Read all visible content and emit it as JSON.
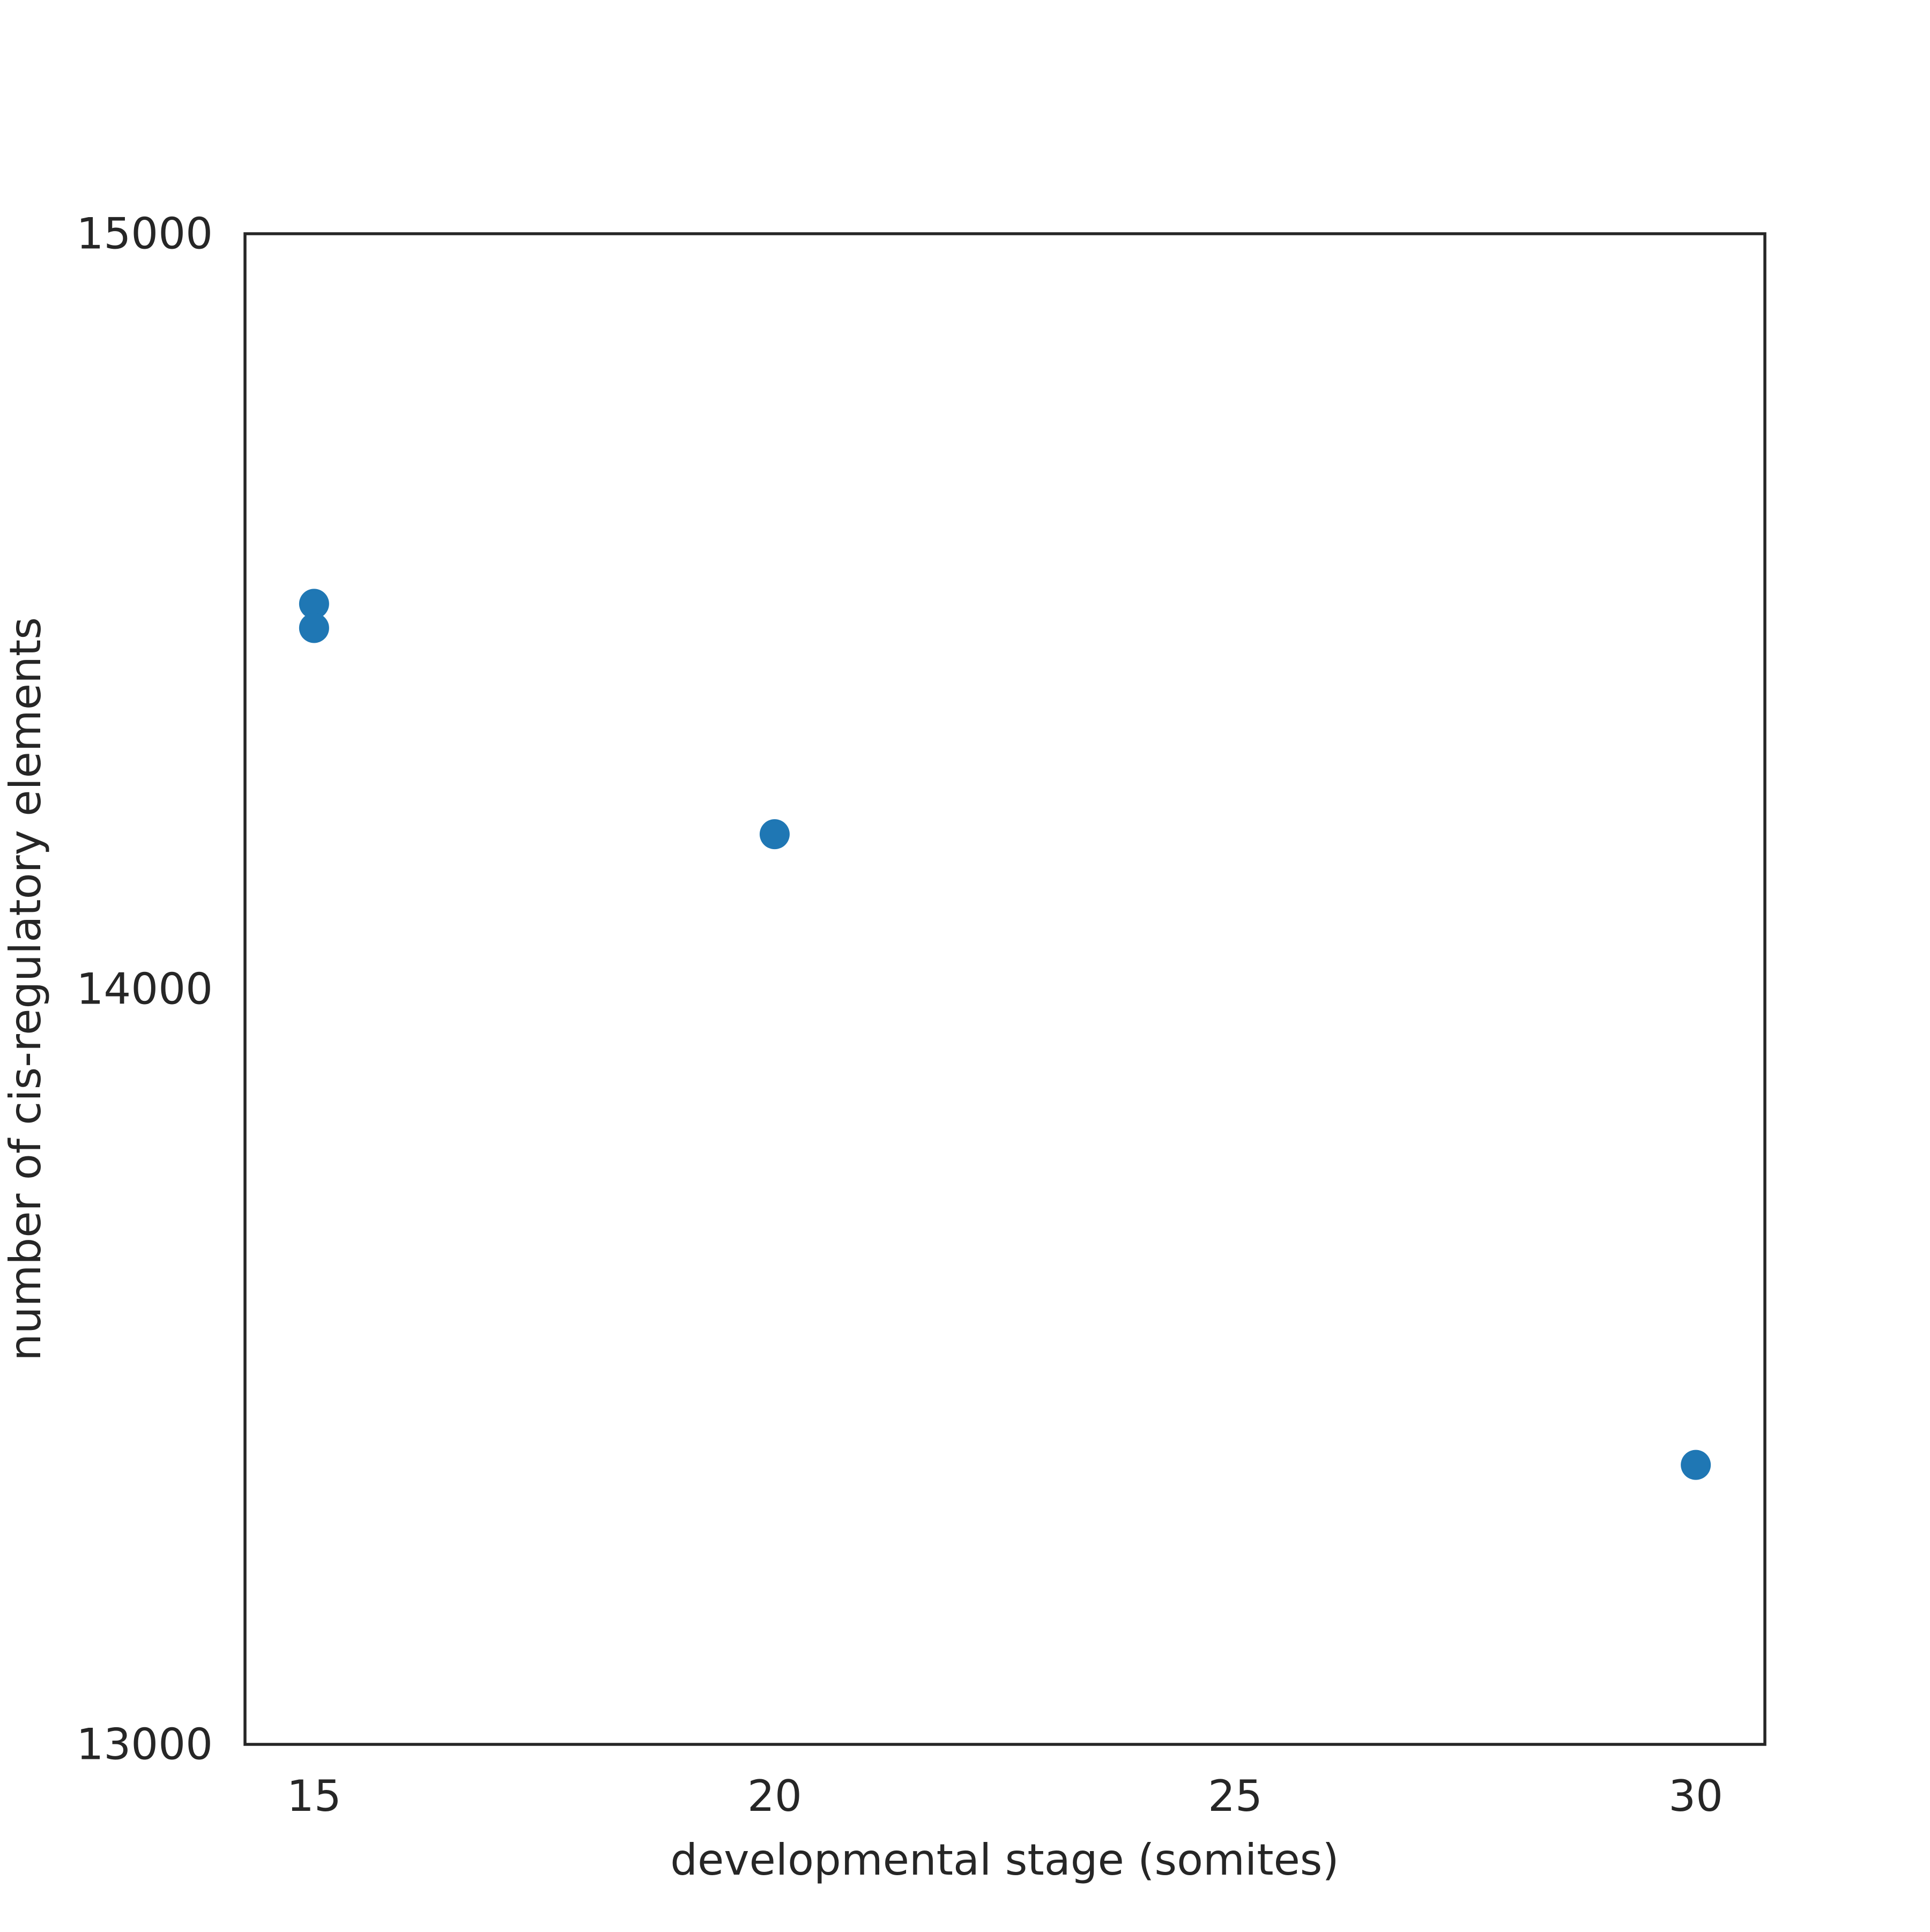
{
  "chart_data": {
    "type": "scatter",
    "title": "",
    "xlabel": "developmental stage (somites)",
    "ylabel": "number of cis-regulatory elements",
    "xlim": [
      14.25,
      30.75
    ],
    "ylim": [
      13000,
      15000
    ],
    "xticks": [
      15,
      20,
      25,
      30
    ],
    "yticks": [
      13000,
      14000,
      15000
    ],
    "xtick_labels": [
      "15",
      "20",
      "25",
      "30"
    ],
    "ytick_labels": [
      "13000",
      "14000",
      "15000"
    ],
    "grid": false,
    "legend": "none",
    "series": [
      {
        "color": "#1f77b4",
        "points": [
          {
            "x": 15,
            "y": 14510
          },
          {
            "x": 15,
            "y": 14478
          },
          {
            "x": 20,
            "y": 14205
          },
          {
            "x": 30,
            "y": 13370
          }
        ]
      }
    ]
  }
}
